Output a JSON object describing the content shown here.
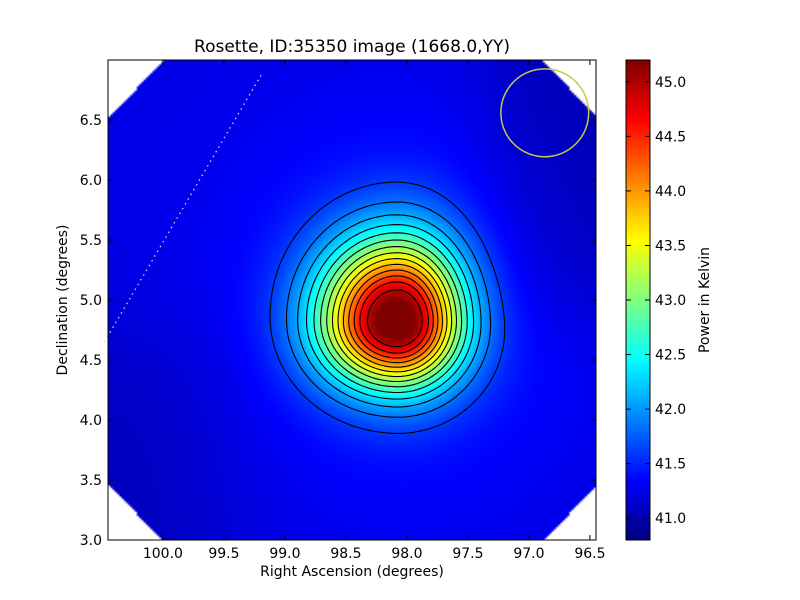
{
  "chart_data": {
    "type": "heatmap",
    "title": "Rosette, ID:35350 image (1668.0,YY)",
    "xlabel": "Right Ascension (degrees)",
    "ylabel": "Declination (degrees)",
    "colorbar_label": "Power in Kelvin",
    "xlim": [
      100.45,
      96.45
    ],
    "ylim": [
      3.0,
      7.0
    ],
    "x_ticks": [
      100.0,
      99.5,
      99.0,
      98.5,
      98.0,
      97.5,
      97.0,
      96.5
    ],
    "x_tick_labels": [
      "100.0",
      "99.5",
      "99.0",
      "98.5",
      "98.0",
      "97.5",
      "97.0",
      "96.5"
    ],
    "y_ticks": [
      3.0,
      3.5,
      4.0,
      4.5,
      5.0,
      5.5,
      6.0,
      6.5
    ],
    "y_tick_labels": [
      "3.0",
      "3.5",
      "4.0",
      "4.5",
      "5.0",
      "5.5",
      "6.0",
      "6.5"
    ],
    "color_range": [
      40.8,
      45.2
    ],
    "colorbar_ticks": [
      41.0,
      41.5,
      42.0,
      42.5,
      43.0,
      43.5,
      44.0,
      44.5,
      45.0
    ],
    "colorbar_tick_labels": [
      "41.0",
      "41.5",
      "42.0",
      "42.5",
      "43.0",
      "43.5",
      "44.0",
      "44.5",
      "45.0"
    ],
    "colormap": "jet",
    "peak": {
      "ra": 98.08,
      "dec": 4.82,
      "value": 45.15
    },
    "background_level": 41.2,
    "contour_levels": [
      41.6,
      41.85,
      42.1,
      42.35,
      42.6,
      42.85,
      43.1,
      43.35,
      43.6,
      43.85,
      44.1,
      44.35,
      44.6,
      44.9
    ],
    "beam_circle": {
      "ra": 96.87,
      "dec": 6.56,
      "radius_deg": 0.36,
      "color": "#c8c84a"
    },
    "dotted_line": {
      "from": {
        "ra": 100.48,
        "dec": 4.65
      },
      "to": {
        "ra": 99.18,
        "dec": 6.9
      },
      "color": "#d0d0d0"
    },
    "grid": false
  }
}
